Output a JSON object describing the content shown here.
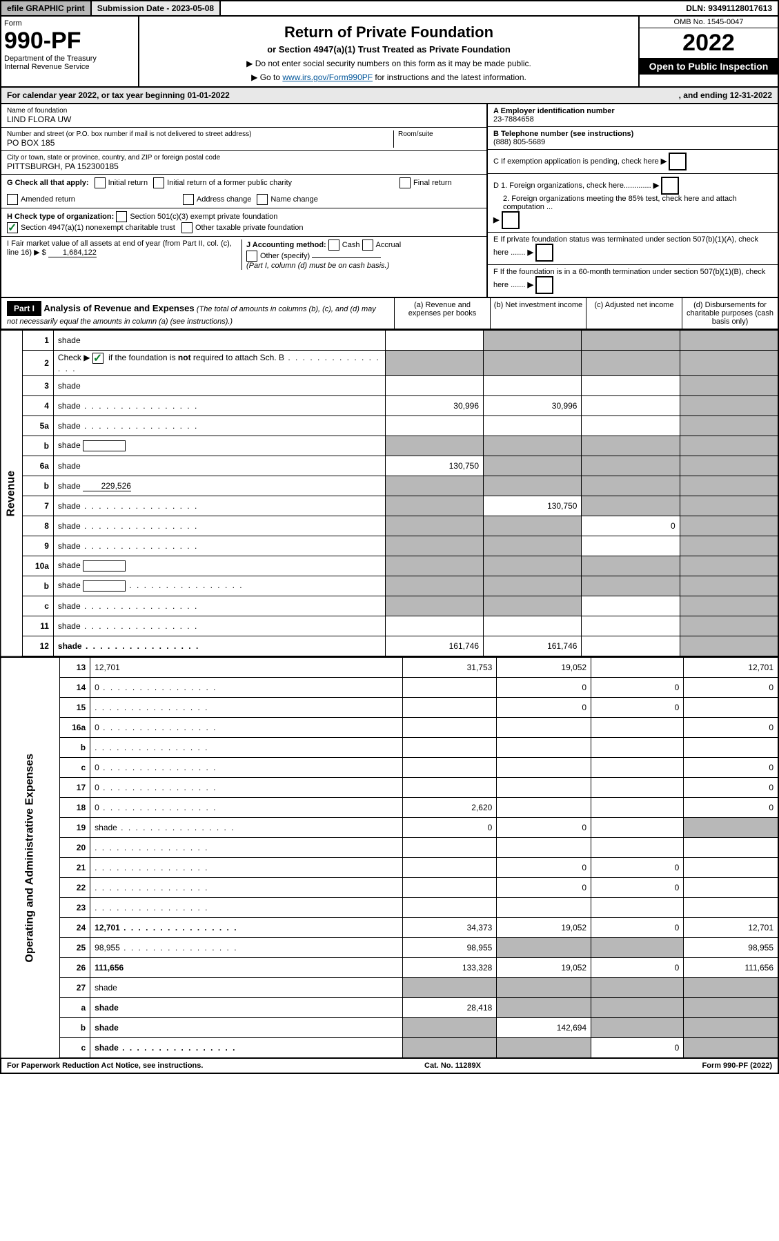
{
  "topbar": {
    "efile": "efile GRAPHIC print",
    "subdate_label": "Submission Date - ",
    "subdate": "2023-05-08",
    "dln_label": "DLN: ",
    "dln": "93491128017613"
  },
  "header": {
    "formword": "Form",
    "formnum": "990-PF",
    "dept1": "Department of the Treasury",
    "dept2": "Internal Revenue Service",
    "title": "Return of Private Foundation",
    "subtitle": "or Section 4947(a)(1) Trust Treated as Private Foundation",
    "note1": "▶ Do not enter social security numbers on this form as it may be made public.",
    "note2_pre": "▶ Go to ",
    "note2_link": "www.irs.gov/Form990PF",
    "note2_post": " for instructions and the latest information.",
    "omb": "OMB No. 1545-0047",
    "year": "2022",
    "opento": "Open to Public Inspection"
  },
  "calyear": {
    "left": "For calendar year 2022, or tax year beginning 01-01-2022",
    "right": ", and ending 12-31-2022"
  },
  "info": {
    "name_label": "Name of foundation",
    "name": "LIND FLORA UW",
    "addr_label": "Number and street (or P.O. box number if mail is not delivered to street address)",
    "addr": "PO BOX 185",
    "room_label": "Room/suite",
    "city_label": "City or town, state or province, country, and ZIP or foreign postal code",
    "city": "PITTSBURGH, PA  152300185",
    "ein_label": "A Employer identification number",
    "ein": "23-7884658",
    "tel_label": "B Telephone number (see instructions)",
    "tel": "(888) 805-5689",
    "c_label": "C If exemption application is pending, check here",
    "d1": "D 1. Foreign organizations, check here.............",
    "d2": "2. Foreign organizations meeting the 85% test, check here and attach computation ...",
    "e_label": "E If private foundation status was terminated under section 507(b)(1)(A), check here .......",
    "f_label": "F If the foundation is in a 60-month termination under section 507(b)(1)(B), check here .......",
    "g_label": "G Check all that apply:",
    "g_initial": "Initial return",
    "g_initial_former": "Initial return of a former public charity",
    "g_final": "Final return",
    "g_amended": "Amended return",
    "g_addr": "Address change",
    "g_name": "Name change",
    "h_label": "H Check type of organization:",
    "h_501c3": "Section 501(c)(3) exempt private foundation",
    "h_4947": "Section 4947(a)(1) nonexempt charitable trust",
    "h_other_tax": "Other taxable private foundation",
    "i_label": "I Fair market value of all assets at end of year (from Part II, col. (c), line 16) ▶ $",
    "i_val": "1,684,122",
    "j_label": "J Accounting method:",
    "j_cash": "Cash",
    "j_accrual": "Accrual",
    "j_other": "Other (specify)",
    "j_note": "(Part I, column (d) must be on cash basis.)"
  },
  "part1": {
    "tag": "Part I",
    "title": "Analysis of Revenue and Expenses",
    "desc": "(The total of amounts in columns (b), (c), and (d) may not necessarily equal the amounts in column (a) (see instructions).)",
    "col_a": "(a) Revenue and expenses per books",
    "col_b": "(b) Net investment income",
    "col_c": "(c) Adjusted net income",
    "col_d": "(d) Disbursements for charitable purposes (cash basis only)"
  },
  "sidelabels": {
    "rev": "Revenue",
    "exp": "Operating and Administrative Expenses"
  },
  "rows": [
    {
      "n": "1",
      "d": "shade",
      "a": "",
      "b": "shade",
      "c": "shade"
    },
    {
      "n": "2",
      "d": "shade",
      "a": "shade",
      "b": "shade",
      "c": "shade",
      "dots": true,
      "bold_not": true
    },
    {
      "n": "3",
      "d": "shade",
      "a": "",
      "b": "",
      "c": ""
    },
    {
      "n": "4",
      "d": "shade",
      "a": "30,996",
      "b": "30,996",
      "c": "",
      "dots": true
    },
    {
      "n": "5a",
      "d": "shade",
      "a": "",
      "b": "",
      "c": "",
      "dots": true
    },
    {
      "n": "b",
      "d": "shade",
      "a": "shade",
      "b": "shade",
      "c": "shade",
      "inline_box": true
    },
    {
      "n": "6a",
      "d": "shade",
      "a": "130,750",
      "b": "shade",
      "c": "shade"
    },
    {
      "n": "b",
      "d": "shade",
      "a": "shade",
      "b": "shade",
      "c": "shade",
      "inline_val": "229,526"
    },
    {
      "n": "7",
      "d": "shade",
      "a": "shade",
      "b": "130,750",
      "c": "shade",
      "dots": true
    },
    {
      "n": "8",
      "d": "shade",
      "a": "shade",
      "b": "shade",
      "c": "0",
      "dots": true
    },
    {
      "n": "9",
      "d": "shade",
      "a": "shade",
      "b": "shade",
      "c": "",
      "dots": true
    },
    {
      "n": "10a",
      "d": "shade",
      "a": "shade",
      "b": "shade",
      "c": "shade",
      "inline_box": true
    },
    {
      "n": "b",
      "d": "shade",
      "a": "shade",
      "b": "shade",
      "c": "shade",
      "dots": true,
      "inline_box": true
    },
    {
      "n": "c",
      "d": "shade",
      "a": "shade",
      "b": "shade",
      "c": "",
      "dots": true
    },
    {
      "n": "11",
      "d": "shade",
      "a": "",
      "b": "",
      "c": "",
      "dots": true
    },
    {
      "n": "12",
      "d": "shade",
      "a": "161,746",
      "b": "161,746",
      "c": "",
      "dots": true,
      "bold": true
    }
  ],
  "exp_rows": [
    {
      "n": "13",
      "d": "12,701",
      "a": "31,753",
      "b": "19,052",
      "c": ""
    },
    {
      "n": "14",
      "d": "0",
      "a": "",
      "b": "0",
      "c": "0",
      "dots": true
    },
    {
      "n": "15",
      "d": "",
      "a": "",
      "b": "0",
      "c": "0",
      "dots": true
    },
    {
      "n": "16a",
      "d": "0",
      "a": "",
      "b": "",
      "c": "",
      "dots": true
    },
    {
      "n": "b",
      "d": "",
      "a": "",
      "b": "",
      "c": "",
      "dots": true
    },
    {
      "n": "c",
      "d": "0",
      "a": "",
      "b": "",
      "c": "",
      "dots": true
    },
    {
      "n": "17",
      "d": "0",
      "a": "",
      "b": "",
      "c": "",
      "dots": true
    },
    {
      "n": "18",
      "d": "0",
      "a": "2,620",
      "b": "",
      "c": "",
      "dots": true
    },
    {
      "n": "19",
      "d": "shade",
      "a": "0",
      "b": "0",
      "c": "",
      "dots": true
    },
    {
      "n": "20",
      "d": "",
      "a": "",
      "b": "",
      "c": "",
      "dots": true
    },
    {
      "n": "21",
      "d": "",
      "a": "",
      "b": "0",
      "c": "0",
      "dots": true
    },
    {
      "n": "22",
      "d": "",
      "a": "",
      "b": "0",
      "c": "0",
      "dots": true
    },
    {
      "n": "23",
      "d": "",
      "a": "",
      "b": "",
      "c": "",
      "dots": true
    },
    {
      "n": "24",
      "d": "12,701",
      "a": "34,373",
      "b": "19,052",
      "c": "0",
      "dots": true,
      "bold": true
    },
    {
      "n": "25",
      "d": "98,955",
      "a": "98,955",
      "b": "shade",
      "c": "shade",
      "dots": true
    },
    {
      "n": "26",
      "d": "111,656",
      "a": "133,328",
      "b": "19,052",
      "c": "0",
      "bold": true
    },
    {
      "n": "27",
      "d": "shade",
      "a": "shade",
      "b": "shade",
      "c": "shade"
    },
    {
      "n": "a",
      "d": "shade",
      "a": "28,418",
      "b": "shade",
      "c": "shade",
      "bold": true
    },
    {
      "n": "b",
      "d": "shade",
      "a": "shade",
      "b": "142,694",
      "c": "shade",
      "bold": true
    },
    {
      "n": "c",
      "d": "shade",
      "a": "shade",
      "b": "shade",
      "c": "0",
      "bold": true,
      "dots": true
    }
  ],
  "footer": {
    "left": "For Paperwork Reduction Act Notice, see instructions.",
    "mid": "Cat. No. 11289X",
    "right": "Form 990-PF (2022)"
  }
}
